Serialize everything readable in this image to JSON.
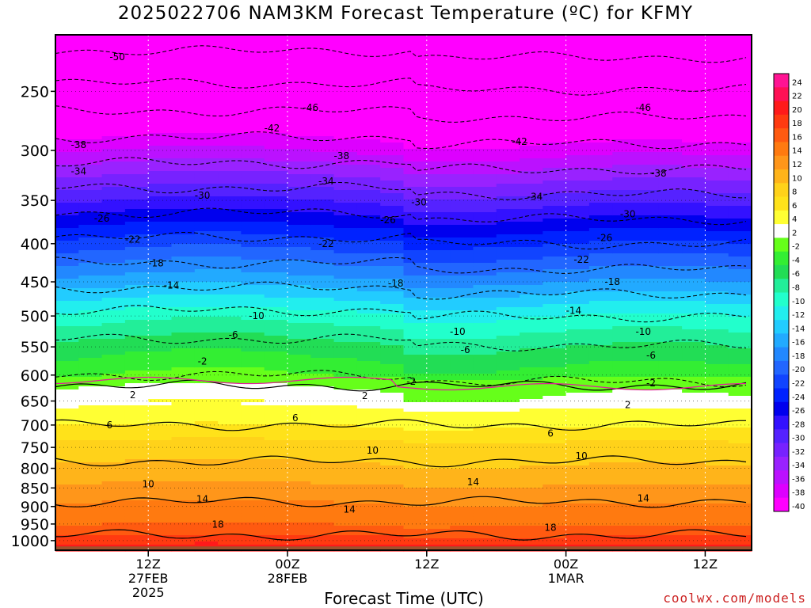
{
  "page": {
    "title": "2025022706 NAM3KM Forecast Temperature (ºC) for KFMY",
    "credit": "coolwx.com/models"
  },
  "chart_data": {
    "type": "heatmap",
    "title": "2025022706 NAM3KM Forecast Temperature (ºC) for KFMY",
    "xlabel": "Forecast Time (UTC)",
    "ylabel": "",
    "y_scale": "log",
    "y_inverted": true,
    "ylim": [
      1030,
      210
    ],
    "y_ticks": [
      250,
      300,
      350,
      400,
      450,
      500,
      550,
      600,
      650,
      700,
      750,
      800,
      850,
      900,
      950,
      1000
    ],
    "x_range_hours": [
      -6,
      84
    ],
    "x_ticks": [
      {
        "hour": 6,
        "label": "12Z",
        "sub1": "27FEB",
        "sub2": "2025"
      },
      {
        "hour": 24,
        "label": "00Z",
        "sub1": "28FEB",
        "sub2": ""
      },
      {
        "hour": 42,
        "label": "12Z",
        "sub1": "",
        "sub2": ""
      },
      {
        "hour": 60,
        "label": "00Z",
        "sub1": "1MAR",
        "sub2": ""
      },
      {
        "hour": 78,
        "label": "12Z",
        "sub1": "",
        "sub2": ""
      }
    ],
    "grid": true,
    "colorbar": {
      "levels": [
        "24",
        "22",
        "20",
        "18",
        "16",
        "14",
        "12",
        "10",
        "8",
        "6",
        "4",
        "2",
        "-2",
        "-4",
        "-6",
        "-8",
        "-10",
        "-12",
        "-14",
        "-16",
        "-18",
        "-20",
        "-22",
        "-24",
        "-26",
        "-28",
        "-30",
        "-32",
        "-34",
        "-36",
        "-38",
        "-40"
      ],
      "colors": [
        "#ff1493",
        "#ff1055",
        "#ff1a1a",
        "#ff3a10",
        "#ff5a10",
        "#ff7a10",
        "#ff961a",
        "#ffb41a",
        "#ffd21a",
        "#ffe21a",
        "#ffff33",
        "#ffffff",
        "#66ff1a",
        "#33ee33",
        "#22dd55",
        "#22ee99",
        "#22ffcc",
        "#22eeee",
        "#22ccff",
        "#22aaff",
        "#2288ff",
        "#2266ff",
        "#1144ff",
        "#0022ff",
        "#0000ee",
        "#3311ff",
        "#5522ff",
        "#7722ff",
        "#9922ff",
        "#bb11ff",
        "#dd00ff",
        "#ff00ff"
      ]
    },
    "temperature_profile": {
      "pressure_levels": [
        1020,
        1000,
        950,
        900,
        850,
        800,
        750,
        700,
        650,
        620,
        600,
        550,
        500,
        450,
        400,
        350,
        300,
        250,
        210
      ],
      "temperatures": [
        21,
        19,
        16,
        14.5,
        12.5,
        10.5,
        9,
        6,
        3.5,
        2,
        -2,
        -5,
        -9,
        -15,
        -21,
        -28,
        -36,
        -45,
        -52
      ]
    },
    "contour_labels": [
      {
        "text": "-50",
        "hour": 2,
        "p": 225
      },
      {
        "text": "-46",
        "hour": 27,
        "p": 263
      },
      {
        "text": "-46",
        "hour": 70,
        "p": 263
      },
      {
        "text": "-42",
        "hour": 22,
        "p": 280
      },
      {
        "text": "-42",
        "hour": 54,
        "p": 292
      },
      {
        "text": "-38",
        "hour": -3,
        "p": 295
      },
      {
        "text": "-38",
        "hour": 31,
        "p": 305
      },
      {
        "text": "-38",
        "hour": 72,
        "p": 322
      },
      {
        "text": "-34",
        "hour": -3,
        "p": 320
      },
      {
        "text": "-34",
        "hour": 29,
        "p": 330
      },
      {
        "text": "-34",
        "hour": 56,
        "p": 346
      },
      {
        "text": "-30",
        "hour": 13,
        "p": 345
      },
      {
        "text": "-30",
        "hour": 41,
        "p": 352
      },
      {
        "text": "-30",
        "hour": 68,
        "p": 365
      },
      {
        "text": "-26",
        "hour": 0,
        "p": 370
      },
      {
        "text": "-26",
        "hour": 37,
        "p": 372
      },
      {
        "text": "-26",
        "hour": 65,
        "p": 393
      },
      {
        "text": "-22",
        "hour": 4,
        "p": 395
      },
      {
        "text": "-22",
        "hour": 29,
        "p": 400
      },
      {
        "text": "-22",
        "hour": 62,
        "p": 420
      },
      {
        "text": "-18",
        "hour": 7,
        "p": 425
      },
      {
        "text": "-18",
        "hour": 38,
        "p": 452
      },
      {
        "text": "-18",
        "hour": 66,
        "p": 450
      },
      {
        "text": "-14",
        "hour": 9,
        "p": 455
      },
      {
        "text": "-14",
        "hour": 61,
        "p": 492
      },
      {
        "text": "-10",
        "hour": 20,
        "p": 500
      },
      {
        "text": "-10",
        "hour": 46,
        "p": 525
      },
      {
        "text": "-10",
        "hour": 70,
        "p": 525
      },
      {
        "text": "-6",
        "hour": 17,
        "p": 530
      },
      {
        "text": "-6",
        "hour": 47,
        "p": 555
      },
      {
        "text": "-6",
        "hour": 71,
        "p": 565
      },
      {
        "text": "-2",
        "hour": 13,
        "p": 575
      },
      {
        "text": "-2",
        "hour": 40,
        "p": 612
      },
      {
        "text": "-2",
        "hour": 71,
        "p": 615
      },
      {
        "text": "2",
        "hour": 4,
        "p": 638
      },
      {
        "text": "2",
        "hour": 34,
        "p": 640
      },
      {
        "text": "2",
        "hour": 68,
        "p": 658
      },
      {
        "text": "6",
        "hour": 1,
        "p": 700
      },
      {
        "text": "6",
        "hour": 25,
        "p": 685
      },
      {
        "text": "6",
        "hour": 58,
        "p": 718
      },
      {
        "text": "10",
        "hour": 6,
        "p": 840
      },
      {
        "text": "10",
        "hour": 35,
        "p": 757
      },
      {
        "text": "10",
        "hour": 62,
        "p": 770
      },
      {
        "text": "14",
        "hour": 13,
        "p": 880
      },
      {
        "text": "14",
        "hour": 32,
        "p": 908
      },
      {
        "text": "14",
        "hour": 48,
        "p": 835
      },
      {
        "text": "14",
        "hour": 70,
        "p": 878
      },
      {
        "text": "18",
        "hour": 15,
        "p": 951
      },
      {
        "text": "18",
        "hour": 58,
        "p": 961
      }
    ]
  }
}
